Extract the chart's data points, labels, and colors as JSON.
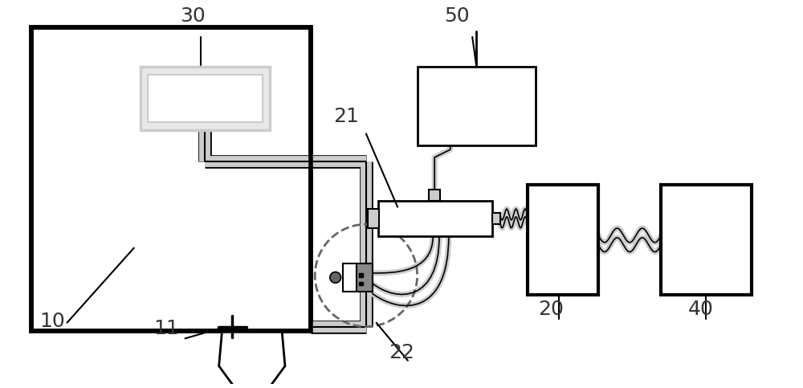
{
  "bg_color": "#ffffff",
  "line_color": "#000000",
  "gray_color": "#aaaaaa",
  "dark_gray": "#555555",
  "light_gray": "#cccccc",
  "figsize": [
    10.0,
    4.83
  ],
  "dpi": 100
}
